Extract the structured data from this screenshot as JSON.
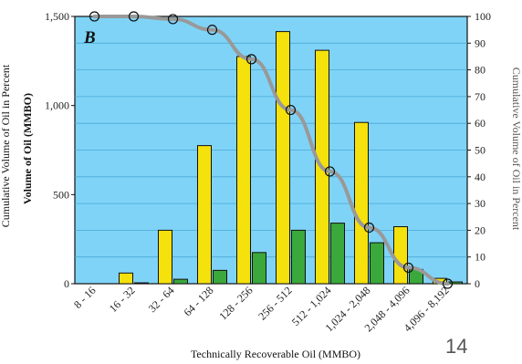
{
  "chart_data": {
    "type": "bar",
    "panel_label": "B",
    "xlabel": "Technically Recoverable Oil (MMBO)",
    "ylabel": "Volume of Oil (MMBO)",
    "ylabel_left_outer": "Cumulative Volume of Oil in Percent",
    "ylabel_right": "Cumulative Volume of Oil in Percent",
    "categories": [
      "8 - 16",
      "16 - 32",
      "32 - 64",
      "64 - 128",
      "128 - 256",
      "256 - 512",
      "512 - 1,024",
      "1,024 - 2,048",
      "2,048 - 4,096",
      "4,096 - 8,192"
    ],
    "series": [
      {
        "type": "bar",
        "color": "#f5e10c",
        "values": [
          0,
          60,
          300,
          775,
          1275,
          1415,
          1310,
          905,
          320,
          30
        ]
      },
      {
        "type": "bar",
        "color": "#3aa83a",
        "values": [
          0,
          5,
          25,
          75,
          175,
          300,
          340,
          230,
          80,
          10
        ]
      },
      {
        "type": "line",
        "color": "#999999",
        "axis": "right",
        "values": [
          100,
          100,
          99,
          95,
          84,
          65,
          42,
          21,
          6,
          0
        ]
      }
    ],
    "ylim": [
      0,
      1500
    ],
    "yticks": [
      "0",
      "500",
      "1,000",
      "1,500"
    ],
    "ylim_right": [
      0,
      100
    ],
    "yticks_right": [
      "0",
      "10",
      "20",
      "30",
      "40",
      "50",
      "60",
      "70",
      "80",
      "90",
      "100"
    ],
    "colors": {
      "background": "#7fd3f7",
      "bar_fill_yellow": "#f5e10c",
      "bar_fill_green": "#3aa83a",
      "line": "#999999"
    }
  },
  "slide_number": "14"
}
